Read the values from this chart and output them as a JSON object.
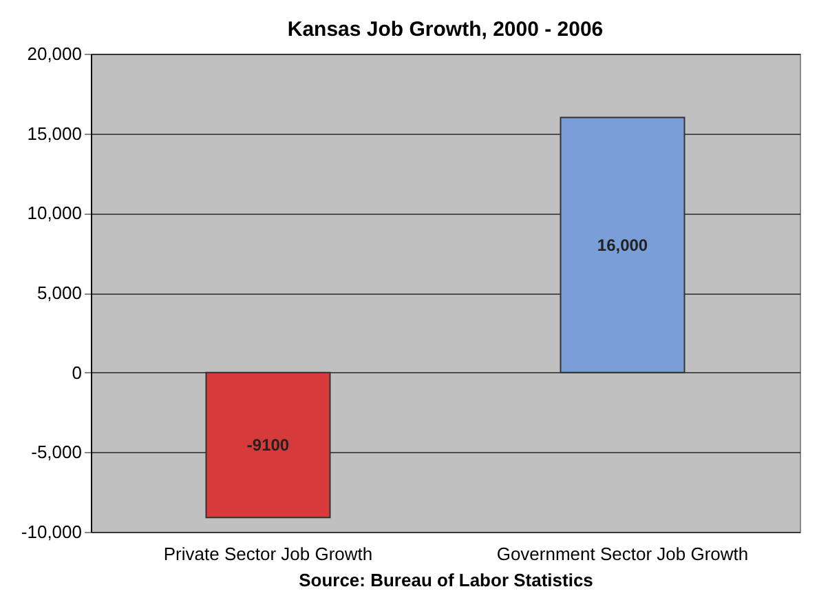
{
  "chart_data": {
    "type": "bar",
    "title": "Kansas Job Growth, 2000 - 2006",
    "categories": [
      "Private Sector Job Growth",
      "Government Sector Job Growth"
    ],
    "values": [
      -9100,
      16000
    ],
    "colors": [
      "#d63a3a",
      "#7a9ed8"
    ],
    "value_labels": [
      "-9100",
      "16,000"
    ],
    "ylim": [
      -10000,
      20000
    ],
    "yticks": [
      {
        "value": -10000,
        "label": "-10,000"
      },
      {
        "value": -5000,
        "label": "-5,000"
      },
      0,
      {
        "value": 5000,
        "label": "5,000"
      },
      {
        "value": 10000,
        "label": "10,000"
      },
      {
        "value": 15000,
        "label": "15,000"
      },
      {
        "value": 20000,
        "label": "20,000"
      }
    ],
    "grid": "y",
    "annotations": [
      "Source: Bureau of Labor Statistics"
    ]
  }
}
